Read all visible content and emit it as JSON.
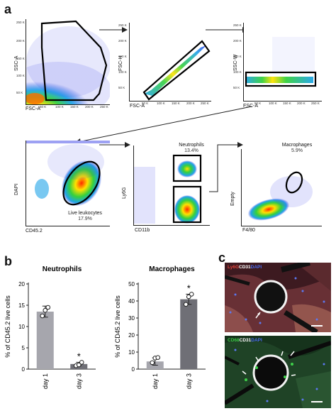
{
  "panel_a": {
    "letter": "a",
    "plots": [
      {
        "id": "p1",
        "xlabel": "FSC-A",
        "ylabel": "SSC-A",
        "xticks": [
          "50 K",
          "100 K",
          "150 K",
          "200 K",
          "250 K"
        ],
        "yticks": [
          "250 K",
          "200 K",
          "150 K",
          "100 K",
          "50 K"
        ]
      },
      {
        "id": "p2",
        "xlabel": "FSC-A",
        "ylabel": "FSC-H",
        "xticks": [
          "50 K",
          "100 K",
          "150 K",
          "200 K",
          "250 K"
        ],
        "yticks": [
          "250 K",
          "200 K",
          "150 K",
          "100 K",
          "50 K"
        ]
      },
      {
        "id": "p3",
        "xlabel": "FSC-A",
        "ylabel": "SSC-W",
        "xticks": [
          "50 K",
          "100 K",
          "150 K",
          "200 K",
          "250 K"
        ],
        "yticks": [
          "250 K",
          "200 K",
          "150 K",
          "100 K",
          "50 K"
        ]
      },
      {
        "id": "p4",
        "xlabel": "CD45.2",
        "ylabel": "DAPI",
        "gate_label": "Live leukocytes",
        "gate_pct": "17.9%"
      },
      {
        "id": "p5",
        "xlabel": "CD11b",
        "ylabel": "Ly6G",
        "gate_label": "Neutrophils",
        "gate_pct": "13.4%"
      },
      {
        "id": "p6",
        "xlabel": "F4/80",
        "ylabel": "Empty",
        "gate_label": "Macrophages",
        "gate_pct": "5.9%"
      }
    ]
  },
  "panel_b": {
    "letter": "b"
  },
  "panel_c": {
    "letter": "c",
    "top_label_parts": [
      "Ly6G",
      "CD31",
      "DAPI"
    ],
    "bottom_label_parts": [
      "CD68",
      "CD31",
      "DAPI"
    ],
    "colors": {
      "ly6g": "#e0433a",
      "cd31": "#ffffff",
      "dapi": "#4a6cf0",
      "cd68": "#3fcf4a"
    }
  },
  "chart_data": [
    {
      "type": "bar",
      "title": "Neutrophils",
      "ylabel": "% of CD45.2 live cells",
      "categories": [
        "day 1",
        "day 3"
      ],
      "values": [
        13.5,
        1.2
      ],
      "errors": [
        1.3,
        0.4
      ],
      "points": [
        [
          12.5,
          13.8,
          14.5
        ],
        [
          0.8,
          1.0,
          1.6
        ]
      ],
      "ylim": [
        0,
        20
      ],
      "yticks": [
        0,
        5,
        10,
        15,
        20
      ],
      "bar_colors": [
        "#a6a6ad",
        "#6f6f76"
      ],
      "significance": [
        "",
        "*"
      ]
    },
    {
      "type": "bar",
      "title": "Macrophages",
      "ylabel": "% of CD45.2 live cells",
      "categories": [
        "day 1",
        "day 3"
      ],
      "values": [
        4.5,
        41
      ],
      "errors": [
        2.2,
        3
      ],
      "points": [
        [
          3.8,
          6.5,
          6.8
        ],
        [
          38,
          42.5,
          44
        ]
      ],
      "ylim": [
        0,
        50
      ],
      "yticks": [
        0,
        10,
        20,
        30,
        40,
        50
      ],
      "bar_colors": [
        "#a6a6ad",
        "#6f6f76"
      ],
      "significance": [
        "",
        "*"
      ]
    }
  ]
}
